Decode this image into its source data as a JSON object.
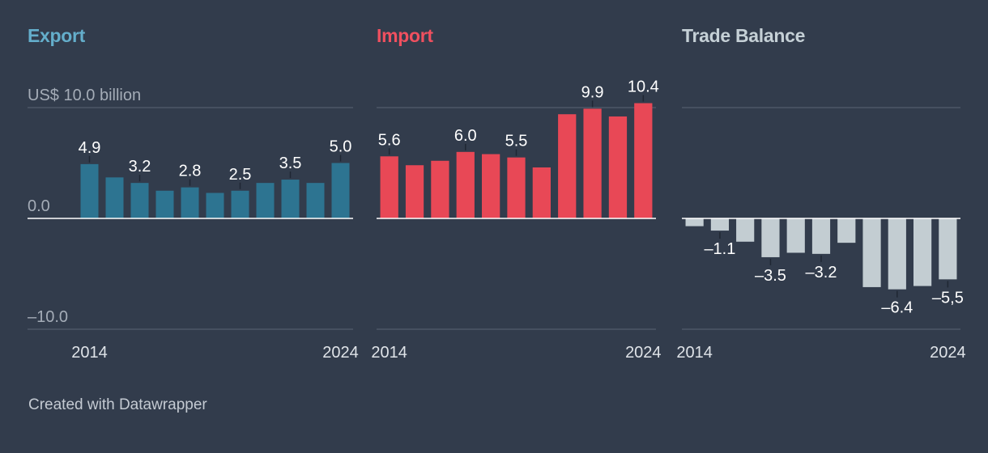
{
  "chart_data": [
    {
      "type": "bar",
      "title": "Export",
      "title_color": "#64aecb",
      "bar_color": "#2d7491",
      "unit_label": "US$ 10.0 billion",
      "ylim": [
        -10,
        10
      ],
      "y_ticks": [
        {
          "value": 0,
          "label": "0.0"
        },
        {
          "value": -10,
          "label": "–10.0"
        }
      ],
      "x_tick_labels": [
        {
          "index": 0,
          "label": "2014"
        },
        {
          "index": 10,
          "label": "2024"
        }
      ],
      "categories": [
        "2014",
        "2015",
        "2016",
        "2017",
        "2018",
        "2019",
        "2020",
        "2021",
        "2022",
        "2023",
        "2024"
      ],
      "values": [
        4.9,
        3.7,
        3.2,
        2.5,
        2.8,
        2.3,
        2.5,
        3.2,
        3.5,
        3.2,
        5.0
      ],
      "data_labels": [
        {
          "index": 0,
          "text": "4.9"
        },
        {
          "index": 2,
          "text": "3.2"
        },
        {
          "index": 4,
          "text": "2.8"
        },
        {
          "index": 6,
          "text": "2.5"
        },
        {
          "index": 8,
          "text": "3.5"
        },
        {
          "index": 10,
          "text": "5.0"
        }
      ],
      "grid": true
    },
    {
      "type": "bar",
      "title": "Import",
      "title_color": "#f0505f",
      "bar_color": "#e84856",
      "unit_label": "",
      "ylim": [
        -10,
        10
      ],
      "y_ticks": [],
      "x_tick_labels": [
        {
          "index": 0,
          "label": "2014"
        },
        {
          "index": 10,
          "label": "2024"
        }
      ],
      "categories": [
        "2014",
        "2015",
        "2016",
        "2017",
        "2018",
        "2019",
        "2020",
        "2021",
        "2022",
        "2023",
        "2024"
      ],
      "values": [
        5.6,
        4.8,
        5.2,
        6.0,
        5.8,
        5.5,
        4.6,
        9.4,
        9.9,
        9.2,
        10.4
      ],
      "data_labels": [
        {
          "index": 0,
          "text": "5.6"
        },
        {
          "index": 3,
          "text": "6.0"
        },
        {
          "index": 5,
          "text": "5.5"
        },
        {
          "index": 8,
          "text": "9.9"
        },
        {
          "index": 10,
          "text": "10.4"
        }
      ],
      "grid": true
    },
    {
      "type": "bar",
      "title": "Trade Balance",
      "title_color": "#c5d0d6",
      "bar_color": "#c3cdd2",
      "unit_label": "",
      "ylim": [
        -10,
        10
      ],
      "y_ticks": [],
      "x_tick_labels": [
        {
          "index": 0,
          "label": "2014"
        },
        {
          "index": 10,
          "label": "2024"
        }
      ],
      "categories": [
        "2014",
        "2015",
        "2016",
        "2017",
        "2018",
        "2019",
        "2020",
        "2021",
        "2022",
        "2023",
        "2024"
      ],
      "values": [
        -0.7,
        -1.1,
        -2.1,
        -3.5,
        -3.1,
        -3.2,
        -2.2,
        -6.2,
        -6.4,
        -6.1,
        -5.5
      ],
      "data_labels": [
        {
          "index": 1,
          "text": "–1.1"
        },
        {
          "index": 3,
          "text": "–3.5"
        },
        {
          "index": 5,
          "text": "–3.2"
        },
        {
          "index": 8,
          "text": "–6.4"
        },
        {
          "index": 10,
          "text": "–5,5"
        }
      ],
      "grid": true
    }
  ],
  "footer": {
    "credit": "Created with Datawrapper"
  }
}
